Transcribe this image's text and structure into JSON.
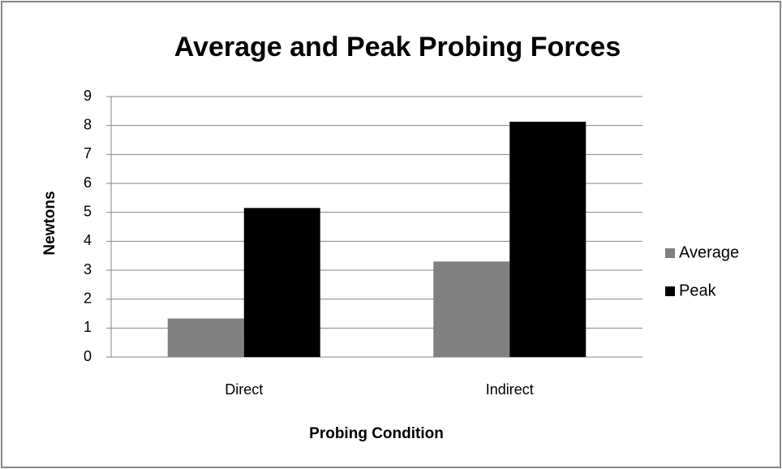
{
  "chart_data": {
    "type": "bar",
    "title": "Average and Peak Probing Forces",
    "x_label": "Probing Condition",
    "y_label": "Newtons",
    "categories": [
      "Direct",
      "Indirect"
    ],
    "series": [
      {
        "name": "Average",
        "color": "#808080",
        "values": [
          1.33,
          3.3
        ]
      },
      {
        "name": "Peak",
        "color": "#000000",
        "values": [
          5.15,
          8.13
        ]
      }
    ],
    "ylim": [
      0,
      9
    ],
    "yticks": [
      0,
      1,
      2,
      3,
      4,
      5,
      6,
      7,
      8,
      9
    ],
    "grid": true,
    "legend": "right"
  }
}
